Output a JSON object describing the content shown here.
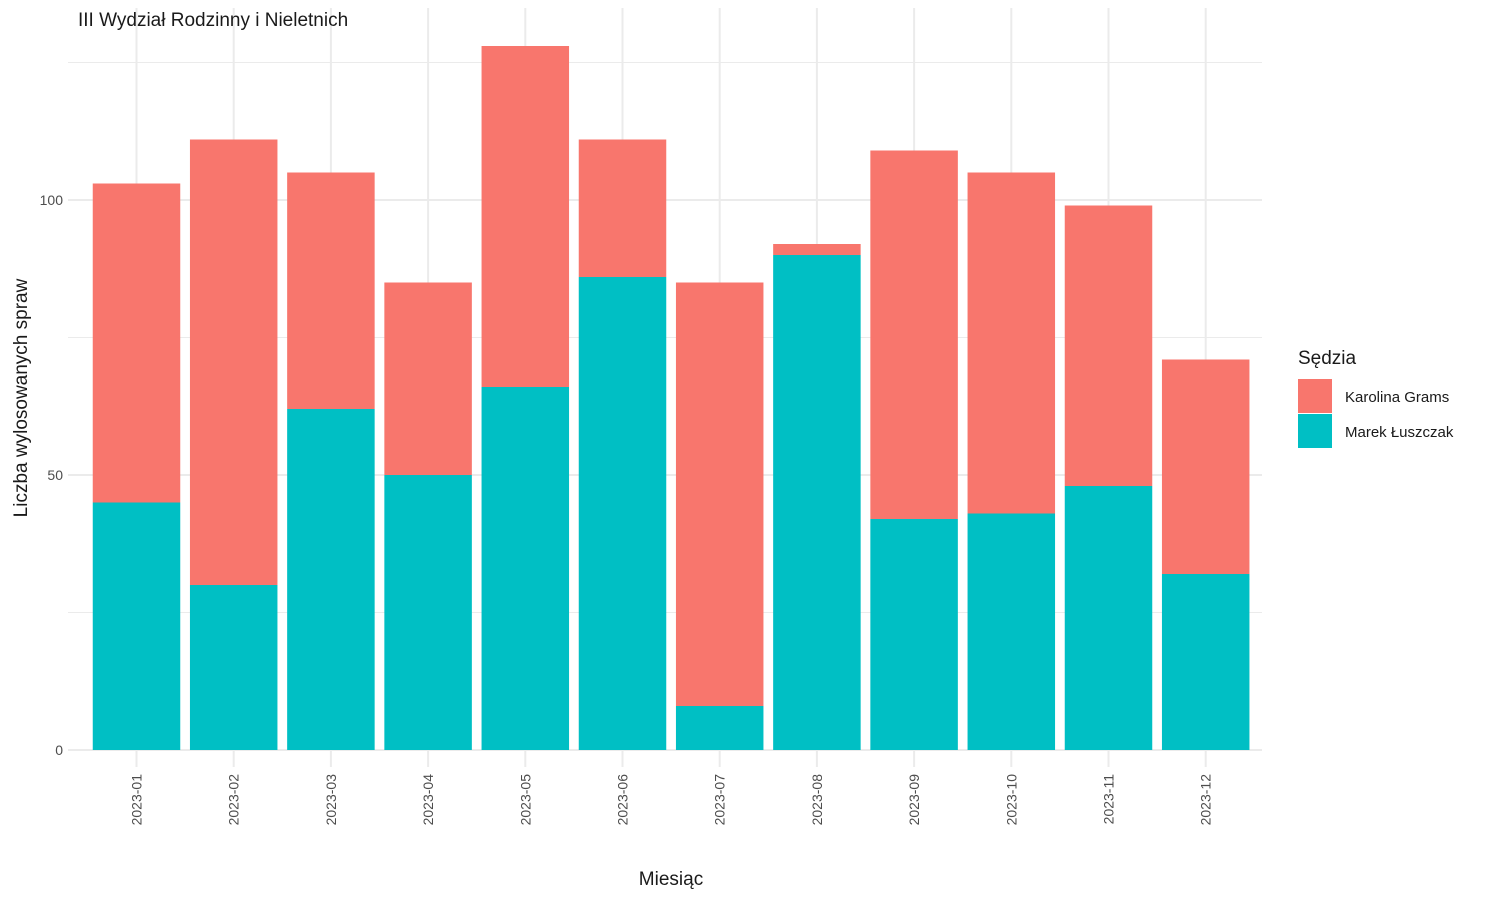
{
  "chart_data": {
    "type": "bar",
    "stacked": true,
    "title": "III Wydział Rodzinny i Nieletnich",
    "xlabel": "Miesiąc",
    "ylabel": "Liczba wylosowanych spraw",
    "categories": [
      "2023-01",
      "2023-02",
      "2023-03",
      "2023-04",
      "2023-05",
      "2023-06",
      "2023-07",
      "2023-08",
      "2023-09",
      "2023-10",
      "2023-11",
      "2023-12"
    ],
    "series": [
      {
        "name": "Marek Łuszczak",
        "color": "#00BFC4",
        "values": [
          45,
          30,
          62,
          50,
          66,
          86,
          8,
          90,
          42,
          43,
          48,
          32
        ]
      },
      {
        "name": "Karolina Grams",
        "color": "#F8766D",
        "values": [
          58,
          81,
          43,
          35,
          62,
          25,
          77,
          2,
          67,
          62,
          51,
          39
        ]
      }
    ],
    "ylim": [
      0,
      130
    ],
    "yticks": [
      0,
      50,
      100
    ],
    "grid": true,
    "legend": {
      "title": "Sędzia",
      "placement": "right",
      "entries": [
        {
          "label": "Karolina Grams",
          "color": "#F8766D"
        },
        {
          "label": "Marek Łuszczak",
          "color": "#00BFC4"
        }
      ]
    }
  }
}
